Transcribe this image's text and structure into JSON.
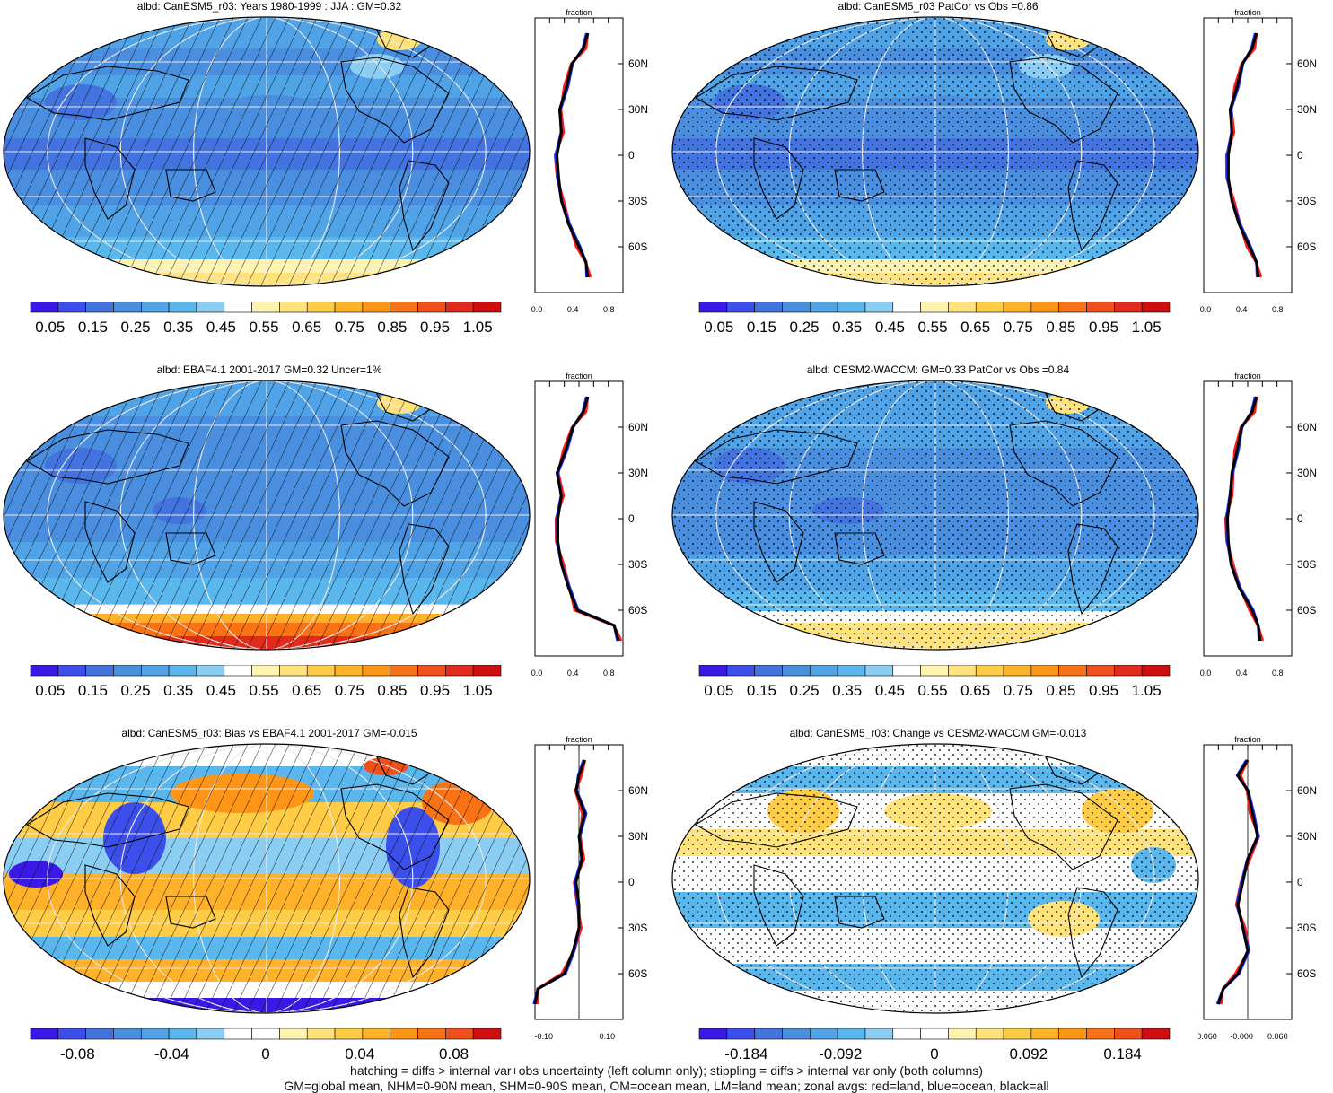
{
  "panels": [
    {
      "title": "albd: CanESM5_r03: Years 1980-1999 : JJA : GM=0.32",
      "variant": "model",
      "hatch": true,
      "stipple": false,
      "seq": 0,
      "prof_xticks": [
        "0.0",
        "0.4",
        "0.8"
      ],
      "prof_xlabel": "fraction",
      "prof_ylabels": [
        "60N",
        "30N",
        "0",
        "30S",
        "60S"
      ],
      "cbar_labels": [
        "0.05",
        "0.15",
        "0.25",
        "0.35",
        "0.45",
        "0.55",
        "0.65",
        "0.75",
        "0.85",
        "0.95",
        "1.05"
      ],
      "cbar_type": "seq"
    },
    {
      "title": "albd: CanESM5_r03 PatCor vs Obs =0.86",
      "variant": "model",
      "hatch": false,
      "stipple": true,
      "seq": 1,
      "prof_xticks": [
        "0.0",
        "0.4",
        "0.8"
      ],
      "prof_xlabel": "fraction",
      "prof_ylabels": [
        "60N",
        "30N",
        "0",
        "30S",
        "60S"
      ],
      "cbar_labels": [
        "0.05",
        "0.15",
        "0.25",
        "0.35",
        "0.45",
        "0.55",
        "0.65",
        "0.75",
        "0.85",
        "0.95",
        "1.05"
      ],
      "cbar_type": "seq"
    },
    {
      "title": "albd: EBAF4.1 2001-2017 GM=0.32 Uncer=1%",
      "variant": "obs",
      "hatch": true,
      "stipple": false,
      "seq": 2,
      "prof_xticks": [
        "0.0",
        "0.4",
        "0.8"
      ],
      "prof_xlabel": "fraction",
      "prof_ylabels": [
        "60N",
        "30N",
        "0",
        "30S",
        "60S"
      ],
      "cbar_labels": [
        "0.05",
        "0.15",
        "0.25",
        "0.35",
        "0.45",
        "0.55",
        "0.65",
        "0.75",
        "0.85",
        "0.95",
        "1.05"
      ],
      "cbar_type": "seq"
    },
    {
      "title": "albd: CESM2-WACCM: GM=0.33 PatCor vs Obs =0.84",
      "variant": "model2",
      "hatch": false,
      "stipple": true,
      "seq": 3,
      "prof_xticks": [
        "0.0",
        "0.4",
        "0.8"
      ],
      "prof_xlabel": "fraction",
      "prof_ylabels": [
        "60N",
        "30N",
        "0",
        "30S",
        "60S"
      ],
      "cbar_labels": [
        "0.05",
        "0.15",
        "0.25",
        "0.35",
        "0.45",
        "0.55",
        "0.65",
        "0.75",
        "0.85",
        "0.95",
        "1.05"
      ],
      "cbar_type": "seq"
    },
    {
      "title": "albd: CanESM5_r03: Bias vs EBAF4.1 2001-2017 GM=-0.015",
      "variant": "bias",
      "hatch": true,
      "stipple": false,
      "seq": 4,
      "prof_xticks": [
        "-0.10",
        "0.10"
      ],
      "prof_xlabel": "fraction",
      "prof_ylabels": [
        "60N",
        "30N",
        "0",
        "30S",
        "60S"
      ],
      "cbar_labels": [
        "-0.08",
        "-0.04",
        "0",
        "0.04",
        "0.08"
      ],
      "cbar_type": "div"
    },
    {
      "title": "albd: CanESM5_r03: Change vs CESM2-WACCM GM=-0.013",
      "variant": "change",
      "hatch": false,
      "stipple": true,
      "seq": 5,
      "prof_xticks": [
        "-0.060",
        "-0.000",
        "0.060"
      ],
      "prof_xlabel": "fraction",
      "prof_ylabels": [
        "60N",
        "30N",
        "0",
        "30S",
        "60S"
      ],
      "cbar_labels": [
        "-0.184",
        "-0.092",
        "0",
        "0.092",
        "0.184"
      ],
      "cbar_type": "div"
    }
  ],
  "colors": {
    "seq": [
      "#3a19e6",
      "#3d4fea",
      "#4273de",
      "#4a8ee0",
      "#4fa3e6",
      "#5ab7ee",
      "#8ccdf3",
      "#ffffff",
      "#fff3b0",
      "#ffe27a",
      "#ffcd45",
      "#ffb12a",
      "#ff9516",
      "#f97216",
      "#f0501a",
      "#e22b1c",
      "#cf0f0f"
    ],
    "div": [
      "#3a19e6",
      "#3d4fea",
      "#4273de",
      "#4a8ee0",
      "#4fa3e6",
      "#5ab7ee",
      "#8ccdf3",
      "#ffffff",
      "#ffffff",
      "#fff3b0",
      "#ffe27a",
      "#ffcd45",
      "#ffb12a",
      "#ff9516",
      "#f97216",
      "#f0501a",
      "#cf0f0f"
    ],
    "land_profile": "#ff1a1a",
    "ocean_profile": "#1a2bff",
    "all_profile": "#000000"
  },
  "chart_data": [
    {
      "type": "heatmap",
      "title": "albd: CanESM5_r03: Years 1980-1999 : JJA : GM=0.32",
      "colorbar_ticks": [
        0.05,
        0.15,
        0.25,
        0.35,
        0.45,
        0.55,
        0.65,
        0.75,
        0.85,
        0.95,
        1.05
      ],
      "zonal_profile": {
        "xlabel": "fraction",
        "xlim": [
          0.0,
          1.0
        ],
        "lat": [
          80,
          70,
          60,
          45,
          30,
          15,
          0,
          -15,
          -30,
          -45,
          -60,
          -70,
          -80
        ],
        "all": [
          0.6,
          0.55,
          0.42,
          0.36,
          0.28,
          0.3,
          0.25,
          0.27,
          0.3,
          0.38,
          0.5,
          0.58,
          0.6
        ]
      }
    },
    {
      "type": "heatmap",
      "title": "albd: CanESM5_r03 PatCor vs Obs =0.86",
      "colorbar_ticks": [
        0.05,
        0.15,
        0.25,
        0.35,
        0.45,
        0.55,
        0.65,
        0.75,
        0.85,
        0.95,
        1.05
      ],
      "zonal_profile": {
        "xlabel": "fraction",
        "xlim": [
          0.0,
          1.0
        ],
        "lat": [
          80,
          70,
          60,
          45,
          30,
          15,
          0,
          -15,
          -30,
          -45,
          -60,
          -70,
          -80
        ],
        "all": [
          0.6,
          0.55,
          0.44,
          0.38,
          0.3,
          0.32,
          0.28,
          0.28,
          0.32,
          0.4,
          0.52,
          0.6,
          0.62
        ]
      }
    },
    {
      "type": "heatmap",
      "title": "albd: EBAF4.1 2001-2017 GM=0.32 Uncer=1%",
      "colorbar_ticks": [
        0.05,
        0.15,
        0.25,
        0.35,
        0.45,
        0.55,
        0.65,
        0.75,
        0.85,
        0.95,
        1.05
      ],
      "zonal_profile": {
        "xlabel": "fraction",
        "xlim": [
          0.0,
          1.0
        ],
        "lat": [
          80,
          70,
          60,
          45,
          30,
          15,
          0,
          -15,
          -30,
          -45,
          -60,
          -70,
          -80
        ],
        "all": [
          0.6,
          0.55,
          0.43,
          0.35,
          0.25,
          0.3,
          0.26,
          0.26,
          0.3,
          0.38,
          0.48,
          0.9,
          0.95
        ]
      }
    },
    {
      "type": "heatmap",
      "title": "albd: CESM2-WACCM: GM=0.33 PatCor vs Obs =0.84",
      "colorbar_ticks": [
        0.05,
        0.15,
        0.25,
        0.35,
        0.45,
        0.55,
        0.65,
        0.75,
        0.85,
        0.95,
        1.05
      ],
      "zonal_profile": {
        "xlabel": "fraction",
        "xlim": [
          0.0,
          1.0
        ],
        "lat": [
          80,
          70,
          60,
          45,
          30,
          15,
          0,
          -15,
          -30,
          -45,
          -60,
          -70,
          -80
        ],
        "all": [
          0.6,
          0.55,
          0.43,
          0.38,
          0.32,
          0.3,
          0.27,
          0.28,
          0.31,
          0.4,
          0.55,
          0.62,
          0.64
        ]
      }
    },
    {
      "type": "heatmap",
      "title": "albd: CanESM5_r03: Bias vs EBAF4.1 2001-2017 GM=-0.015",
      "colorbar_ticks": [
        -0.08,
        -0.04,
        0,
        0.04,
        0.08
      ],
      "zonal_profile": {
        "xlabel": "fraction",
        "xlim": [
          -0.15,
          0.15
        ],
        "lat": [
          80,
          70,
          60,
          45,
          30,
          15,
          0,
          -15,
          -30,
          -45,
          -60,
          -70,
          -80
        ],
        "all": [
          0.02,
          0.0,
          -0.01,
          0.02,
          0.0,
          0.01,
          -0.01,
          0.0,
          0.0,
          -0.02,
          -0.05,
          -0.14,
          -0.15
        ]
      }
    },
    {
      "type": "heatmap",
      "title": "albd: CanESM5_r03: Change vs CESM2-WACCM GM=-0.013",
      "colorbar_ticks": [
        -0.184,
        -0.092,
        0,
        0.092,
        0.184
      ],
      "zonal_profile": {
        "xlabel": "fraction",
        "xlim": [
          -0.09,
          0.09
        ],
        "lat": [
          80,
          70,
          60,
          45,
          30,
          15,
          0,
          -15,
          -30,
          -45,
          -60,
          -70,
          -80
        ],
        "all": [
          0.0,
          -0.02,
          0.0,
          0.01,
          0.02,
          0.0,
          -0.01,
          -0.02,
          -0.01,
          0.0,
          -0.02,
          -0.05,
          -0.06
        ]
      }
    }
  ],
  "footer": {
    "line1": "hatching = diffs > internal var+obs uncertainty (left column only); stippling = diffs > internal var only (both columns)",
    "line2": "GM=global mean, NHM=0-90N mean, SHM=0-90S mean, OM=ocean mean, LM=land mean; zonal avgs: red=land, blue=ocean, black=all"
  }
}
